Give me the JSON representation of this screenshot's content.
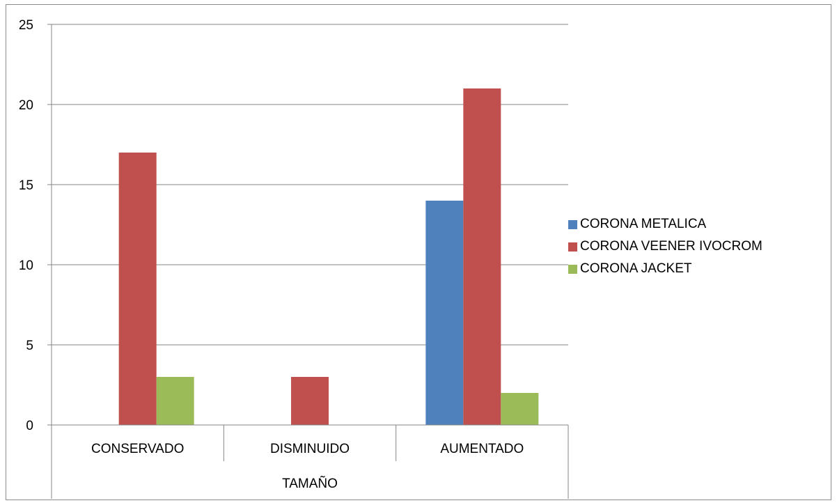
{
  "chart_data": {
    "type": "bar",
    "categories": [
      "CONSERVADO",
      "DISMINUIDO",
      "AUMENTADO"
    ],
    "group_label": "TAMAÑO",
    "series": [
      {
        "name": "CORONA METALICA",
        "values": [
          0,
          0,
          14
        ],
        "color": "#4f81bd"
      },
      {
        "name": "CORONA VEENER IVOCROM",
        "values": [
          17,
          3,
          21
        ],
        "color": "#c0504d"
      },
      {
        "name": "CORONA JACKET",
        "values": [
          3,
          0,
          2
        ],
        "color": "#9bbb59"
      }
    ],
    "ylim": [
      0,
      25
    ],
    "yticks": [
      0,
      5,
      10,
      15,
      20,
      25
    ],
    "grid": true,
    "legend_position": "right"
  }
}
